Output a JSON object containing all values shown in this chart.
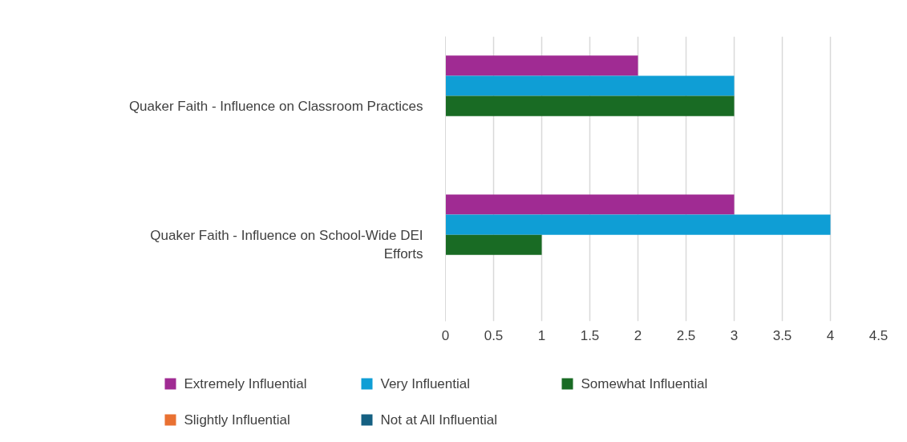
{
  "chart_data": {
    "type": "bar",
    "orientation": "horizontal",
    "categories": [
      "Quaker Faith - Influence on Classroom Practices",
      "Quaker Faith - Influence on School-Wide DEI Efforts"
    ],
    "series": [
      {
        "name": "Extremely Influential",
        "color": "#a02b93",
        "values": [
          2,
          3
        ]
      },
      {
        "name": "Very Influential",
        "color": "#0f9ed5",
        "values": [
          3,
          4
        ]
      },
      {
        "name": "Somewhat Influential",
        "color": "#196b24",
        "values": [
          3,
          1
        ]
      },
      {
        "name": "Slightly Influential",
        "color": "#e97132",
        "values": [
          0,
          0
        ]
      },
      {
        "name": "Not at All Influential",
        "color": "#156082",
        "values": [
          0,
          0
        ]
      }
    ],
    "xlim": [
      0,
      4.5
    ],
    "xticks": [
      0,
      0.5,
      1,
      1.5,
      2,
      2.5,
      3,
      3.5,
      4,
      4.5
    ],
    "grid": "x",
    "legend": "bottom"
  }
}
